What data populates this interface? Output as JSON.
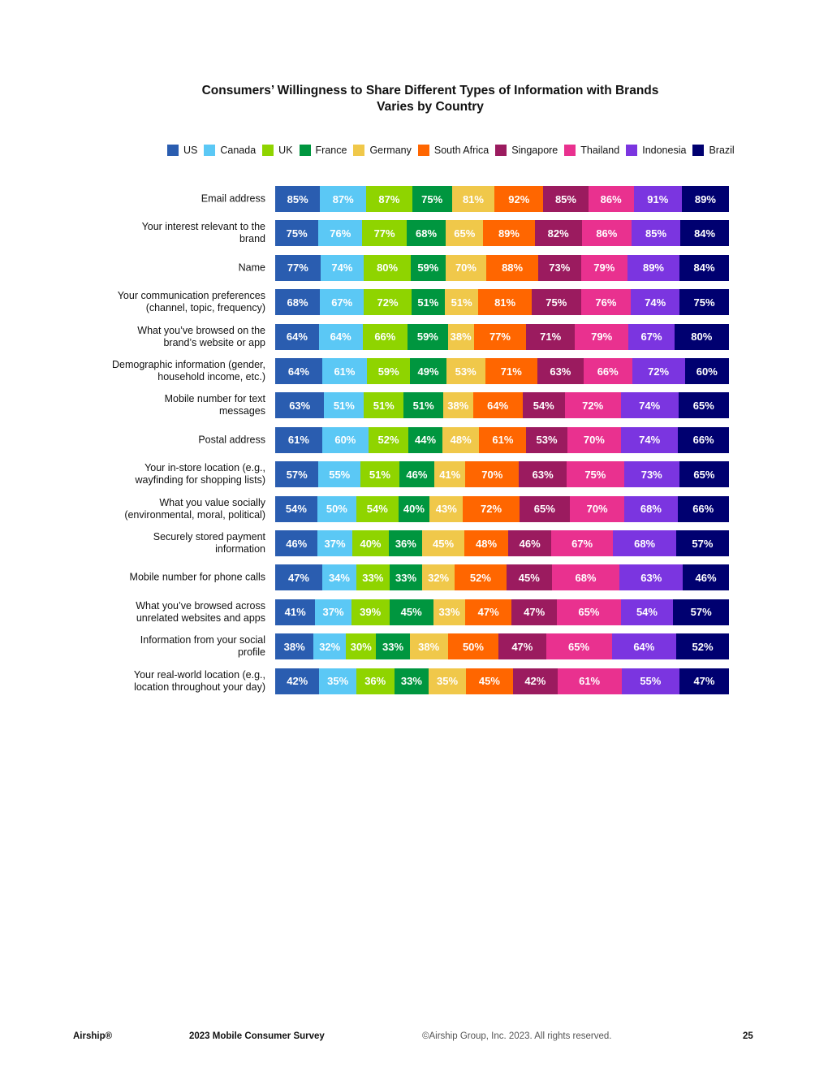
{
  "chart_data": {
    "type": "bar",
    "orientation": "horizontal",
    "stacked": true,
    "title": "Consumers’ Willingness to Share Different Types of Information with Brands\nVaries by Country",
    "legend_placement": "top",
    "series": [
      {
        "name": "US",
        "color": "#2a5db0",
        "values": [
          85,
          75,
          77,
          68,
          64,
          64,
          63,
          61,
          57,
          54,
          46,
          47,
          41,
          38,
          42
        ]
      },
      {
        "name": "Canada",
        "color": "#5bc8f5",
        "values": [
          87,
          76,
          74,
          67,
          64,
          61,
          51,
          60,
          55,
          50,
          37,
          34,
          37,
          32,
          35
        ]
      },
      {
        "name": "UK",
        "color": "#8fd400",
        "values": [
          87,
          77,
          80,
          72,
          66,
          59,
          51,
          52,
          51,
          54,
          40,
          33,
          39,
          30,
          36
        ]
      },
      {
        "name": "France",
        "color": "#00963f",
        "values": [
          75,
          68,
          59,
          51,
          59,
          49,
          51,
          44,
          46,
          40,
          36,
          33,
          45,
          33,
          33
        ]
      },
      {
        "name": "Germany",
        "color": "#f0c84a",
        "values": [
          81,
          65,
          70,
          51,
          38,
          53,
          38,
          48,
          41,
          43,
          45,
          32,
          33,
          38,
          35
        ]
      },
      {
        "name": "South Africa",
        "color": "#ff6600",
        "values": [
          92,
          89,
          88,
          81,
          77,
          71,
          64,
          61,
          70,
          72,
          48,
          52,
          47,
          50,
          45
        ]
      },
      {
        "name": "Singapore",
        "color": "#9b1b5f",
        "values": [
          85,
          82,
          73,
          75,
          71,
          63,
          54,
          53,
          63,
          65,
          46,
          45,
          47,
          47,
          42
        ]
      },
      {
        "name": "Thailand",
        "color": "#e9318f",
        "values": [
          86,
          86,
          79,
          76,
          79,
          66,
          72,
          70,
          75,
          70,
          67,
          68,
          65,
          65,
          61
        ]
      },
      {
        "name": "Indonesia",
        "color": "#7b35e0",
        "values": [
          91,
          85,
          89,
          74,
          67,
          72,
          74,
          74,
          73,
          68,
          68,
          63,
          54,
          64,
          55
        ]
      },
      {
        "name": "Brazil",
        "color": "#000070",
        "values": [
          89,
          84,
          84,
          75,
          80,
          60,
          65,
          66,
          65,
          66,
          57,
          46,
          57,
          52,
          47
        ]
      }
    ],
    "categories": [
      "Email address",
      "Your interest relevant to the\nbrand",
      "Name",
      "Your communication preferences\n(channel, topic, frequency)",
      "What you’ve browsed on the\nbrand’s website or app",
      "Demographic information (gender,\nhousehold income, etc.)",
      "Mobile number for text\nmessages",
      "Postal address",
      "Your in-store location (e.g.,\nwayfinding for shopping lists)",
      "What you value socially\n(environmental, moral, political)",
      "Securely stored payment\ninformation",
      "Mobile number for phone calls",
      "What you’ve browsed across\nunrelated websites and apps",
      "Information from your social\nprofile",
      "Your real-world location (e.g.,\nlocation throughout your day)"
    ],
    "value_suffix": "%"
  },
  "footer": {
    "logo": "Airship®",
    "survey": "2023 Mobile Consumer Survey",
    "copyright": "©Airship Group, Inc. 2023. All rights reserved.",
    "page": "25"
  }
}
